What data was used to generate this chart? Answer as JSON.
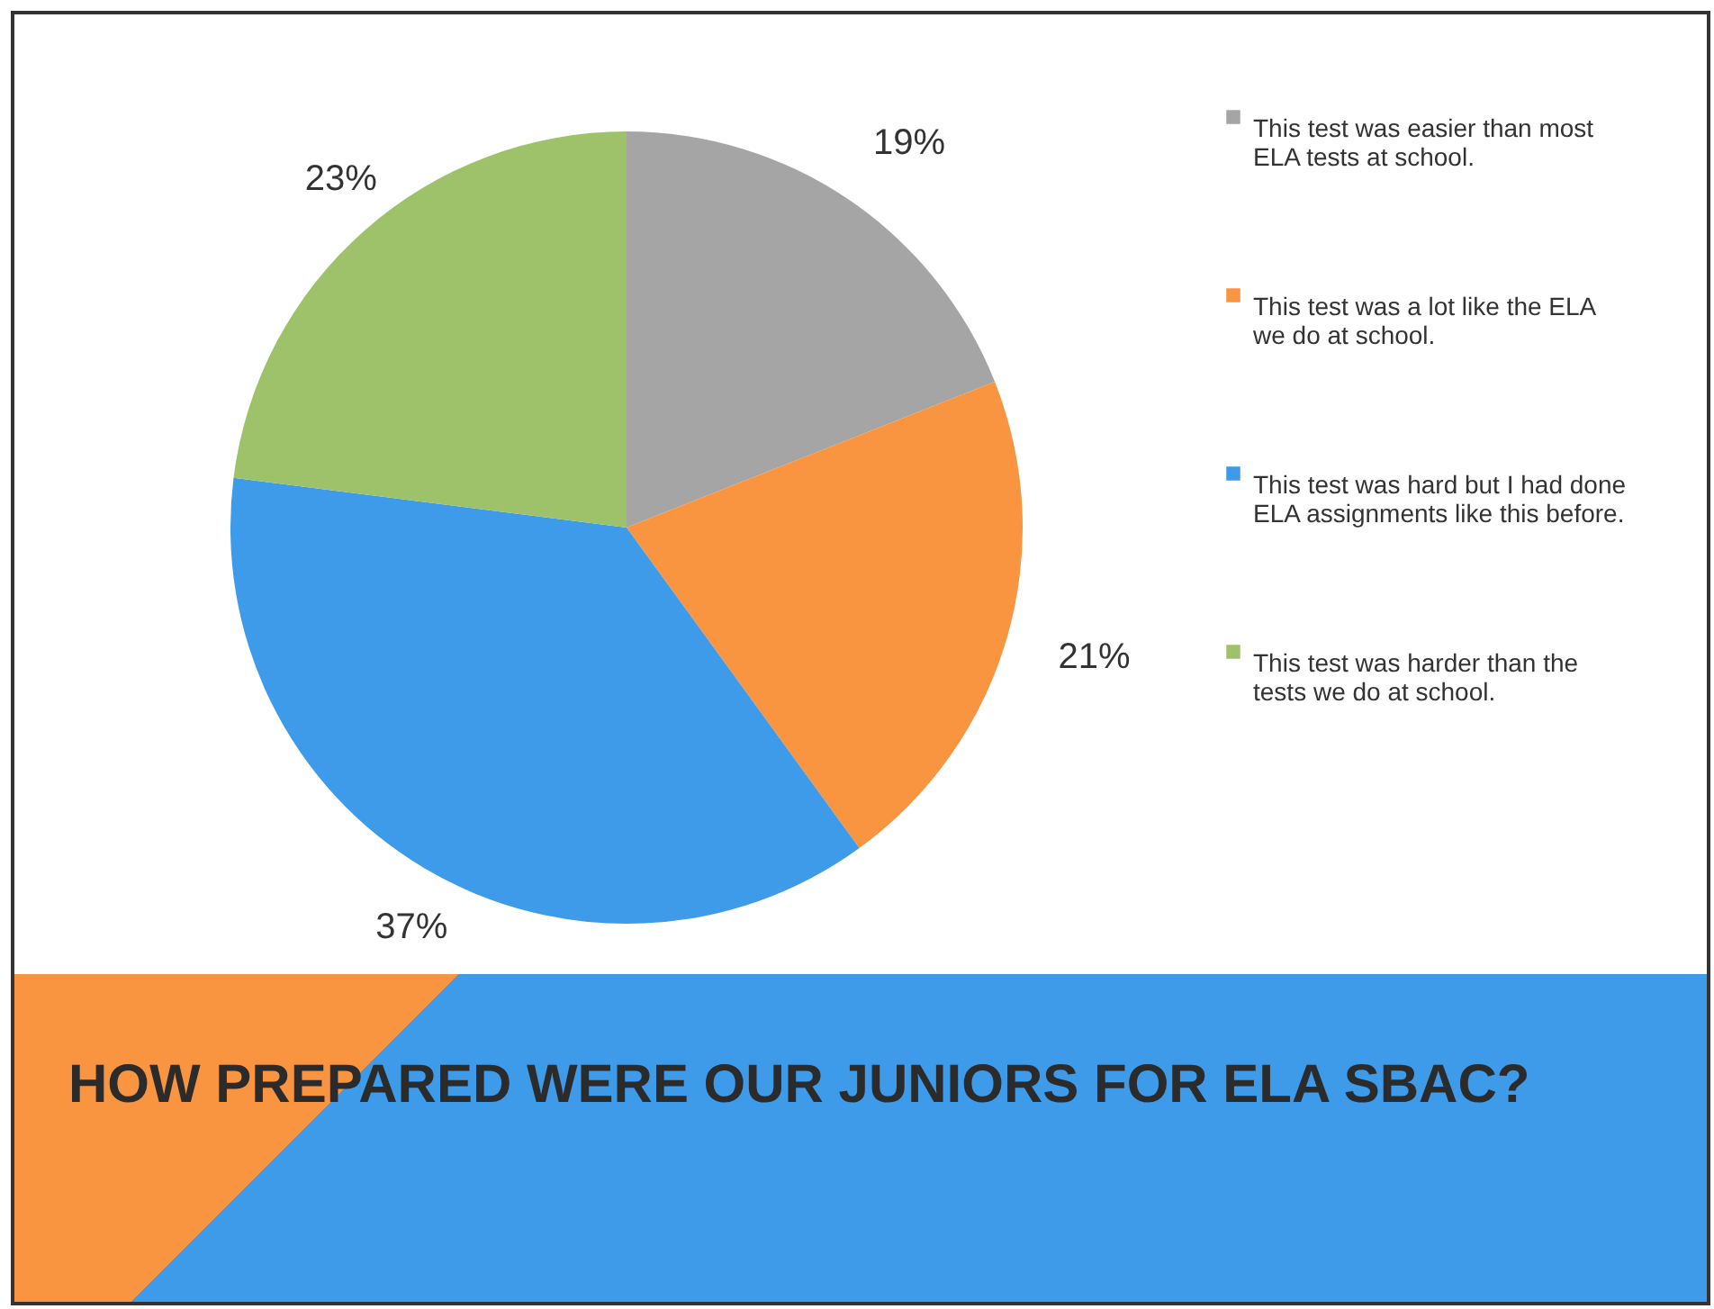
{
  "chart_data": {
    "type": "pie",
    "title": "HOW PREPARED WERE OUR JUNIORS FOR ELA SBAC?",
    "categories": [
      "This test was easier than most ELA tests at school.",
      "This test was a lot like the ELA  we do at school.",
      "This test was hard but I had done ELA assignments like this before.",
      "This test was harder than the tests we do at school."
    ],
    "values": [
      19,
      21,
      37,
      23
    ],
    "colors": [
      "#a5a5a5",
      "#f99440",
      "#3d9be9",
      "#9dc26a"
    ],
    "value_labels": [
      "19%",
      "21%",
      "37%",
      "23%"
    ],
    "legend": "right"
  }
}
